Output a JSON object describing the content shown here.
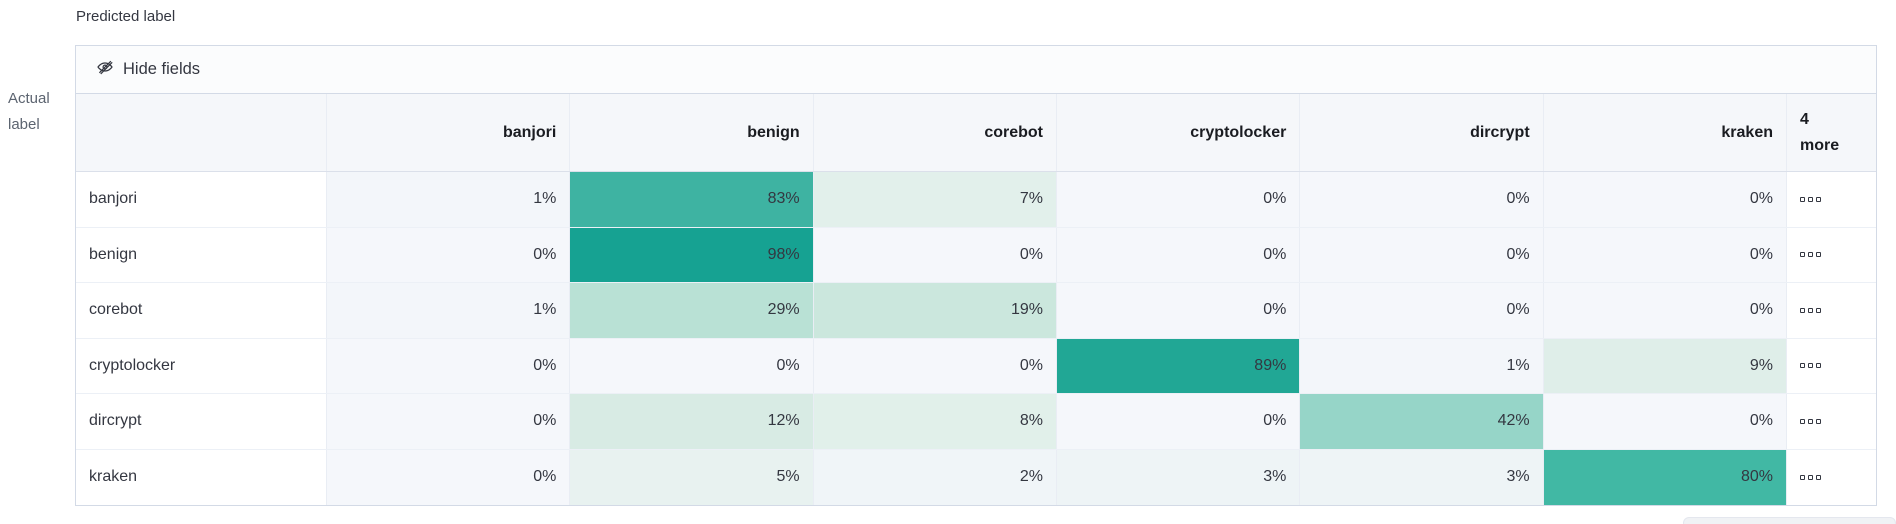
{
  "axes": {
    "predicted_label": "Predicted label",
    "actual_label_line1": "Actual",
    "actual_label_line2": "label"
  },
  "toolbar": {
    "hide_fields_label": "Hide fields"
  },
  "table": {
    "columns": [
      "banjori",
      "benign",
      "corebot",
      "cryptolocker",
      "dircrypt",
      "kraken"
    ],
    "more_column_label": [
      "4",
      "more"
    ],
    "rows": [
      {
        "label": "banjori",
        "values": [
          "1%",
          "83%",
          "7%",
          "0%",
          "0%",
          "0%"
        ],
        "colors": [
          "#f3f6fa",
          "#3eb3a2",
          "#e2f0eb",
          "#f5f7fb",
          "#f5f7fb",
          "#f5f7fb"
        ]
      },
      {
        "label": "benign",
        "values": [
          "0%",
          "98%",
          "0%",
          "0%",
          "0%",
          "0%"
        ],
        "colors": [
          "#f5f7fb",
          "#16a292",
          "#f5f7fb",
          "#f5f7fb",
          "#f5f7fb",
          "#f5f7fb"
        ]
      },
      {
        "label": "corebot",
        "values": [
          "1%",
          "29%",
          "19%",
          "0%",
          "0%",
          "0%"
        ],
        "colors": [
          "#f3f6fa",
          "#b9e1d5",
          "#cbe7dd",
          "#f5f7fb",
          "#f5f7fb",
          "#f5f7fb"
        ]
      },
      {
        "label": "cryptolocker",
        "values": [
          "0%",
          "0%",
          "0%",
          "89%",
          "1%",
          "9%"
        ],
        "colors": [
          "#f5f7fb",
          "#f5f7fb",
          "#f5f7fb",
          "#21a795",
          "#f3f6fa",
          "#dfeee9"
        ]
      },
      {
        "label": "dircrypt",
        "values": [
          "0%",
          "12%",
          "8%",
          "0%",
          "42%",
          "0%"
        ],
        "colors": [
          "#f5f7fb",
          "#d8ebe4",
          "#e1f0ea",
          "#f5f7fb",
          "#96d5c8",
          "#f5f7fb"
        ]
      },
      {
        "label": "kraken",
        "values": [
          "0%",
          "5%",
          "2%",
          "3%",
          "3%",
          "80%"
        ],
        "colors": [
          "#f5f7fb",
          "#e8f2f0",
          "#f0f5f8",
          "#eef4f6",
          "#eef4f6",
          "#41b8a4"
        ]
      }
    ]
  },
  "chart_data": {
    "type": "heatmap",
    "xlabel": "Predicted label",
    "ylabel": "Actual label",
    "x_categories": [
      "banjori",
      "benign",
      "corebot",
      "cryptolocker",
      "dircrypt",
      "kraken"
    ],
    "y_categories": [
      "banjori",
      "benign",
      "corebot",
      "cryptolocker",
      "dircrypt",
      "kraken"
    ],
    "values_percent": [
      [
        1,
        83,
        7,
        0,
        0,
        0
      ],
      [
        0,
        98,
        0,
        0,
        0,
        0
      ],
      [
        1,
        29,
        19,
        0,
        0,
        0
      ],
      [
        0,
        0,
        0,
        89,
        1,
        9
      ],
      [
        0,
        12,
        8,
        0,
        42,
        0
      ],
      [
        0,
        5,
        2,
        3,
        3,
        80
      ]
    ],
    "hidden_columns_badge": "4 more",
    "legend_position": "none",
    "color_scale_low": "#f5f7fb",
    "color_scale_high": "#16a292"
  },
  "colors": {
    "heat_high": "#16a292",
    "heat_low": "#f5f7fb",
    "header_bg": "#f5f7fa",
    "toolbar_bg": "#fbfcfd",
    "outer_border": "#d3dae6",
    "inner_border": "#e9edf4",
    "text": "#343741"
  }
}
